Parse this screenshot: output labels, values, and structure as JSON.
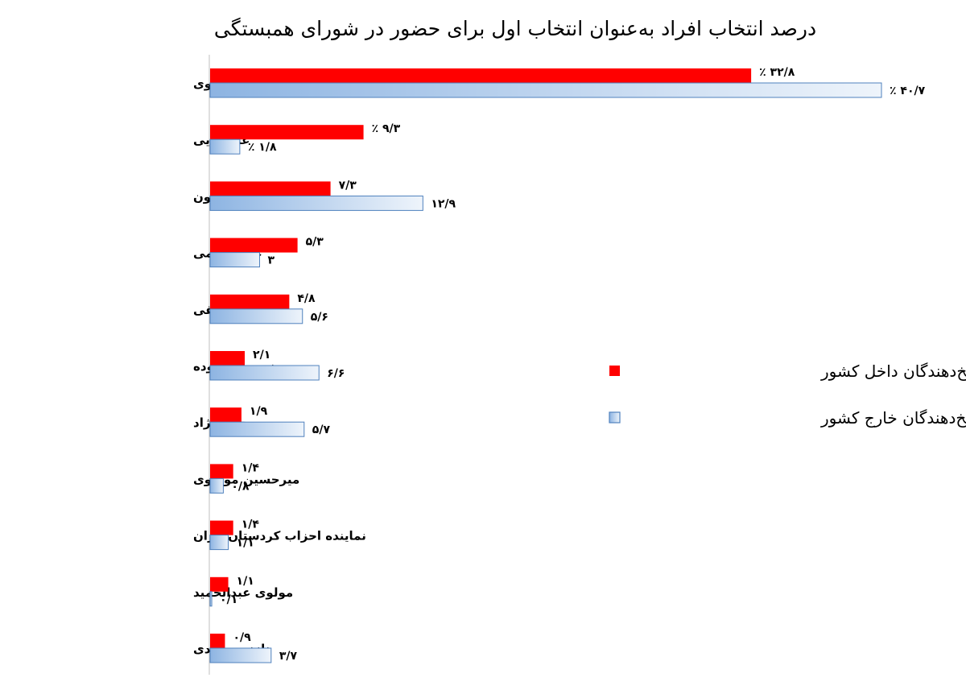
{
  "chart_data": {
    "type": "bar",
    "orientation": "horizontal",
    "title": "درصد انتخاب افراد به‌عنوان انتخاب اول برای حضور در شورای همبستگی",
    "categories": [
      "رضا پهلوی",
      "علی دایی",
      "حامد اسماعیلیون",
      "علی کریمی",
      "حسین رونقی",
      "نسرین ستوده",
      "مسیح علینژاد",
      "میرحسین موسوی",
      "نماینده احزاب کردستان ایران",
      "مولوی عبدالحمید",
      "نازنین بنیادی"
    ],
    "series": [
      {
        "name": "پاسخ‌دهندگان داخل کشور",
        "color": "#ff0000",
        "values": [
          32.8,
          9.3,
          7.3,
          5.3,
          4.8,
          2.1,
          1.9,
          1.4,
          1.4,
          1.1,
          0.9
        ],
        "labels": [
          "٪ ۳۲/۸",
          "٪ ۹/۳",
          "۷/۳",
          "۵/۳",
          "۴/۸",
          "۲/۱",
          "۱/۹",
          "۱/۴",
          "۱/۴",
          "۱/۱",
          "۰/۹"
        ]
      },
      {
        "name": "پاسخ‌دهندگان خارج کشور",
        "color": "#c6d9f1",
        "values": [
          40.7,
          1.8,
          12.9,
          3.0,
          5.6,
          6.6,
          5.7,
          0.8,
          1.1,
          0.1,
          3.7
        ],
        "labels": [
          "٪ ۴۰/۷",
          "٪ ۱/۸",
          "۱۲/۹",
          "۳",
          "۵/۶",
          "۶/۶",
          "۵/۷",
          "۰/۸",
          "۱/۱",
          "۰/۱",
          "۳/۷"
        ]
      }
    ],
    "xlim": [
      0,
      40.7
    ],
    "grid": false,
    "legend_position": "right"
  }
}
